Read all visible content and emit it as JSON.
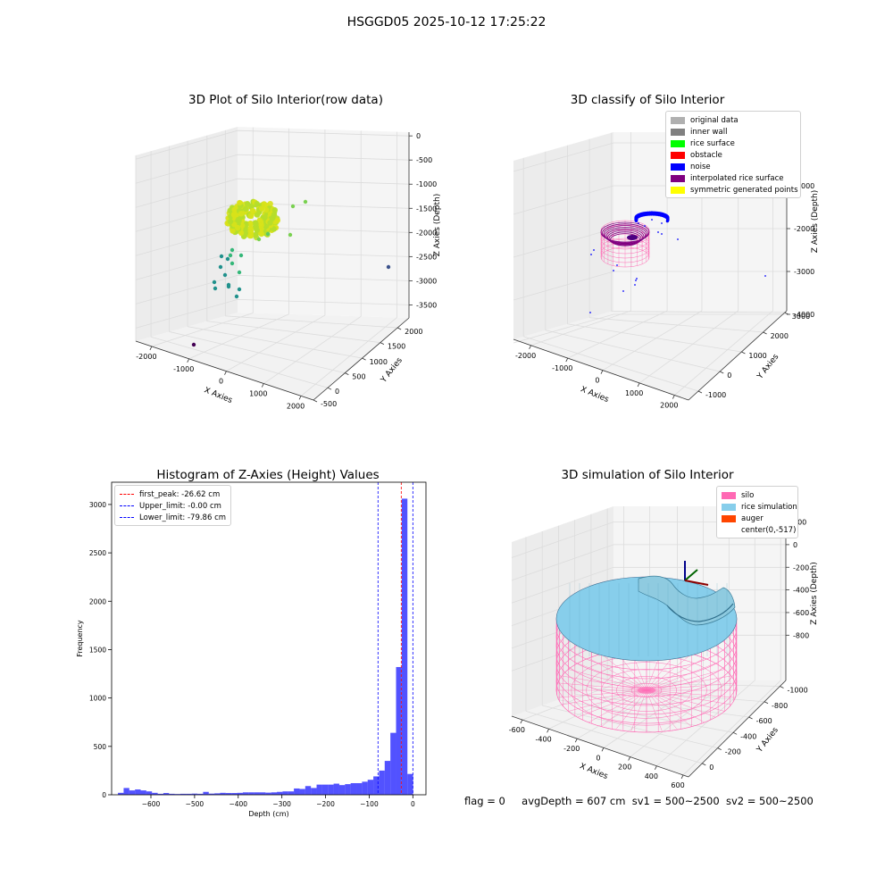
{
  "suptitle": "HSGGD05 2025-10-12 17:25:22",
  "footer": {
    "flag": "flag = 0",
    "avg_depth": "avgDepth = 607 cm",
    "sv1": "sv1 = 500~2500",
    "sv2": "sv2 = 500~2500"
  },
  "chart_data": [
    {
      "type": "scatter",
      "title": "3D Plot of Silo Interior(row data)",
      "xlabel": "X Axies",
      "ylabel": "Y Axies",
      "zlabel": "Z Axies (Depth)",
      "xticks": [
        "-2000",
        "-1000",
        "0",
        "1000",
        "2000"
      ],
      "yticks": [
        "-500",
        "0",
        "500",
        "1000",
        "1500",
        "2000"
      ],
      "zticks": [
        "0",
        "-500",
        "-1000",
        "-1500",
        "-2000",
        "-2500",
        "-3000",
        "-3500"
      ],
      "xlim": [
        -2500,
        2500
      ],
      "ylim": [
        -600,
        2200
      ],
      "zlim": [
        -3800,
        200
      ],
      "colors": {
        "low": "#440154",
        "mid": "#21918c",
        "high": "#fde725"
      }
    },
    {
      "type": "scatter",
      "title": "3D classify of Silo Interior",
      "xlabel": "X Axies",
      "ylabel": "Y Axies",
      "zlabel": "Z Axies (Depth)",
      "xticks": [
        "-2000",
        "-1000",
        "0",
        "1000",
        "2000"
      ],
      "yticks": [
        "-1000",
        "0",
        "1000",
        "2000",
        "3000"
      ],
      "zticks": [
        "0",
        "-1000",
        "-2000",
        "-3000",
        "-4000"
      ],
      "xlim": [
        -2500,
        2500
      ],
      "ylim": [
        -1500,
        3200
      ],
      "zlim": [
        -4200,
        200
      ],
      "legend_position": "top-right",
      "legend": [
        {
          "label": "original data",
          "color": "#b0b0b0"
        },
        {
          "label": "inner wall",
          "color": "#808080"
        },
        {
          "label": "rice surface",
          "color": "#00ff00"
        },
        {
          "label": "obstacle",
          "color": "#ff0000"
        },
        {
          "label": "noise",
          "color": "#0000ff"
        },
        {
          "label": "interpolated rice surface",
          "color": "#800080"
        },
        {
          "label": "symmetric generated points",
          "color": "#ffff00"
        }
      ]
    },
    {
      "type": "bar",
      "title": "Histogram of Z-Axies (Height) Values",
      "xlabel": "Depth (cm)",
      "ylabel": "Frequency",
      "xlim": [
        -690,
        30
      ],
      "ylim": [
        0,
        3230
      ],
      "xticks": [
        -600,
        -500,
        -400,
        -300,
        -200,
        -100,
        0
      ],
      "yticks": [
        0,
        500,
        1000,
        1500,
        2000,
        2500,
        3000
      ],
      "bin_width": 13,
      "bar_color": "#0000ff",
      "bins": [
        {
          "x": -669,
          "count": 20
        },
        {
          "x": -656,
          "count": 70
        },
        {
          "x": -643,
          "count": 45
        },
        {
          "x": -630,
          "count": 55
        },
        {
          "x": -617,
          "count": 45
        },
        {
          "x": -604,
          "count": 35
        },
        {
          "x": -591,
          "count": 20
        },
        {
          "x": -578,
          "count": 10
        },
        {
          "x": -565,
          "count": 18
        },
        {
          "x": -552,
          "count": 10
        },
        {
          "x": -539,
          "count": 8
        },
        {
          "x": -526,
          "count": 10
        },
        {
          "x": -513,
          "count": 10
        },
        {
          "x": -500,
          "count": 12
        },
        {
          "x": -487,
          "count": 10
        },
        {
          "x": -474,
          "count": 30
        },
        {
          "x": -461,
          "count": 12
        },
        {
          "x": -448,
          "count": 15
        },
        {
          "x": -435,
          "count": 20
        },
        {
          "x": -422,
          "count": 18
        },
        {
          "x": -409,
          "count": 18
        },
        {
          "x": -396,
          "count": 20
        },
        {
          "x": -383,
          "count": 25
        },
        {
          "x": -370,
          "count": 25
        },
        {
          "x": -357,
          "count": 25
        },
        {
          "x": -344,
          "count": 25
        },
        {
          "x": -331,
          "count": 22
        },
        {
          "x": -318,
          "count": 25
        },
        {
          "x": -305,
          "count": 30
        },
        {
          "x": -292,
          "count": 35
        },
        {
          "x": -279,
          "count": 35
        },
        {
          "x": -266,
          "count": 65
        },
        {
          "x": -253,
          "count": 60
        },
        {
          "x": -240,
          "count": 90
        },
        {
          "x": -227,
          "count": 70
        },
        {
          "x": -214,
          "count": 105
        },
        {
          "x": -201,
          "count": 105
        },
        {
          "x": -188,
          "count": 105
        },
        {
          "x": -175,
          "count": 115
        },
        {
          "x": -162,
          "count": 100
        },
        {
          "x": -149,
          "count": 110
        },
        {
          "x": -136,
          "count": 120
        },
        {
          "x": -123,
          "count": 120
        },
        {
          "x": -110,
          "count": 135
        },
        {
          "x": -97,
          "count": 155
        },
        {
          "x": -84,
          "count": 190
        },
        {
          "x": -71,
          "count": 250
        },
        {
          "x": -58,
          "count": 350
        },
        {
          "x": -45,
          "count": 640
        },
        {
          "x": -32,
          "count": 1320
        },
        {
          "x": -19,
          "count": 3060
        },
        {
          "x": -6,
          "count": 215
        }
      ],
      "vlines": [
        {
          "label": "first_peak: -26.62 cm",
          "x": -26.62,
          "color": "#ff0000"
        },
        {
          "label": "Upper_limit: -0.00 cm",
          "x": -0.0,
          "color": "#0000ff"
        },
        {
          "label": "Lower_limit: -79.86 cm",
          "x": -79.86,
          "color": "#0000ff"
        }
      ],
      "legend_position": "top-left"
    },
    {
      "type": "area",
      "title": "3D simulation of Silo Interior",
      "xlabel": "X Axies",
      "ylabel": "Y Axies",
      "zlabel": "Z Axies (Depth)",
      "xticks": [
        "-600",
        "-400",
        "-200",
        "0",
        "200",
        "400",
        "600"
      ],
      "yticks": [
        "0",
        "-200",
        "-400",
        "-600",
        "-800",
        "-1000"
      ],
      "zticks": [
        "200",
        "0",
        "-200",
        "-400",
        "-600",
        "-800"
      ],
      "xlim": [
        -650,
        650
      ],
      "ylim": [
        -1150,
        120
      ],
      "zlim": [
        -900,
        350
      ],
      "legend_position": "top-right",
      "legend": [
        {
          "label": "silo",
          "color": "#ff69b4"
        },
        {
          "label": "rice simulation",
          "color": "#87ceeb"
        },
        {
          "label": "auger",
          "color": "#ff4500"
        },
        {
          "label": "center(0,-517)",
          "color": "#ffffff"
        }
      ]
    }
  ]
}
